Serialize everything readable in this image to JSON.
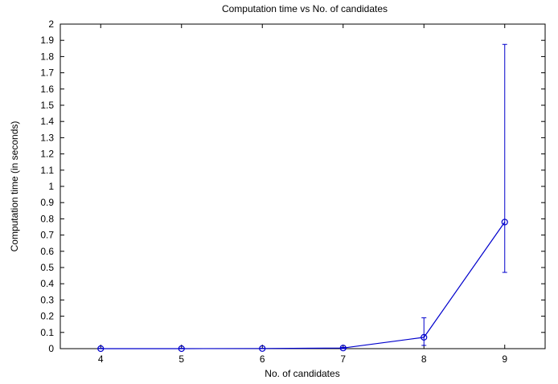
{
  "chart_data": {
    "type": "line",
    "title": "Computation time vs No. of candidates",
    "xlabel": "No. of candidates",
    "ylabel": "Computation time (in seconds)",
    "xlim": [
      3.5,
      9.5
    ],
    "ylim": [
      0,
      2
    ],
    "xticks": [
      "4",
      "5",
      "6",
      "7",
      "8",
      "9"
    ],
    "yticks": [
      "0",
      "0.1",
      "0.2",
      "0.3",
      "0.4",
      "0.5",
      "0.6",
      "0.7",
      "0.8",
      "0.9",
      "1",
      "1.1",
      "1.2",
      "1.3",
      "1.4",
      "1.5",
      "1.6",
      "1.7",
      "1.8",
      "1.9",
      "2"
    ],
    "grid": false,
    "color": "#0000cc",
    "series": [
      {
        "x": [
          4,
          5,
          6,
          7,
          8,
          9
        ],
        "y": [
          0.0,
          0.0,
          0.001,
          0.004,
          0.07,
          0.78
        ],
        "err_low": [
          0.0,
          0.0,
          0.0,
          0.0,
          0.02,
          0.47
        ],
        "err_high": [
          0.002,
          0.002,
          0.002,
          0.008,
          0.19,
          1.875
        ]
      }
    ]
  }
}
